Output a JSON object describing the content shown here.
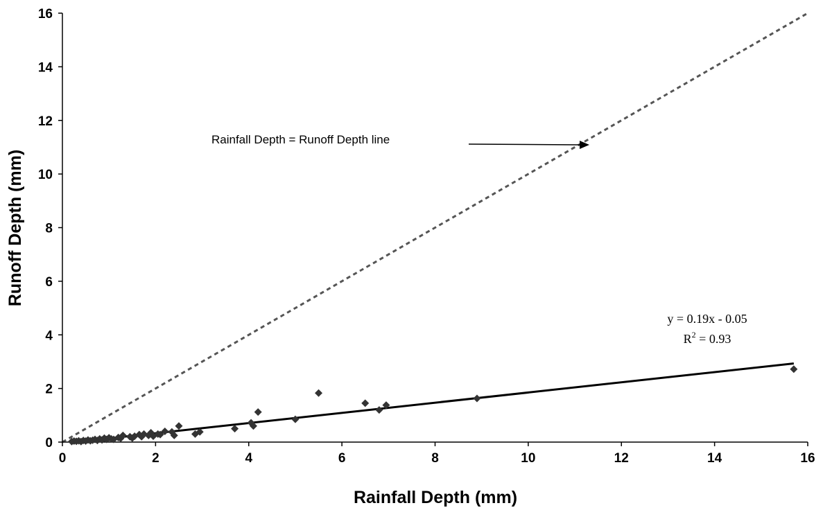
{
  "chart_data": {
    "type": "scatter",
    "title": "",
    "xlabel": "Rainfall Depth (mm)",
    "ylabel": "Runoff Depth (mm)",
    "xlim": [
      0,
      16
    ],
    "ylim": [
      0,
      16
    ],
    "xticks": [
      "0",
      "2",
      "4",
      "6",
      "8",
      "10",
      "12",
      "14",
      "16"
    ],
    "yticks": [
      "0",
      "2",
      "4",
      "6",
      "8",
      "10",
      "12",
      "14",
      "16"
    ],
    "grid": false,
    "colors": {
      "points": "#333333",
      "trendline": "#000000",
      "reference_line": "#555555"
    },
    "points": [
      {
        "x": 0.2,
        "y": 0.02
      },
      {
        "x": 0.25,
        "y": 0.04
      },
      {
        "x": 0.3,
        "y": 0.03
      },
      {
        "x": 0.35,
        "y": 0.05
      },
      {
        "x": 0.4,
        "y": 0.02
      },
      {
        "x": 0.45,
        "y": 0.06
      },
      {
        "x": 0.5,
        "y": 0.04
      },
      {
        "x": 0.55,
        "y": 0.08
      },
      {
        "x": 0.6,
        "y": 0.05
      },
      {
        "x": 0.65,
        "y": 0.07
      },
      {
        "x": 0.7,
        "y": 0.1
      },
      {
        "x": 0.75,
        "y": 0.06
      },
      {
        "x": 0.8,
        "y": 0.12
      },
      {
        "x": 0.85,
        "y": 0.08
      },
      {
        "x": 0.9,
        "y": 0.15
      },
      {
        "x": 0.95,
        "y": 0.1
      },
      {
        "x": 1.0,
        "y": 0.16
      },
      {
        "x": 1.05,
        "y": 0.12
      },
      {
        "x": 1.1,
        "y": 0.1
      },
      {
        "x": 1.2,
        "y": 0.17
      },
      {
        "x": 1.25,
        "y": 0.14
      },
      {
        "x": 1.3,
        "y": 0.25
      },
      {
        "x": 1.45,
        "y": 0.2
      },
      {
        "x": 1.5,
        "y": 0.15
      },
      {
        "x": 1.55,
        "y": 0.22
      },
      {
        "x": 1.65,
        "y": 0.28
      },
      {
        "x": 1.7,
        "y": 0.2
      },
      {
        "x": 1.75,
        "y": 0.3
      },
      {
        "x": 1.85,
        "y": 0.25
      },
      {
        "x": 1.9,
        "y": 0.35
      },
      {
        "x": 1.95,
        "y": 0.22
      },
      {
        "x": 2.05,
        "y": 0.3
      },
      {
        "x": 2.1,
        "y": 0.28
      },
      {
        "x": 2.2,
        "y": 0.4
      },
      {
        "x": 2.35,
        "y": 0.38
      },
      {
        "x": 2.4,
        "y": 0.25
      },
      {
        "x": 2.5,
        "y": 0.6
      },
      {
        "x": 2.85,
        "y": 0.3
      },
      {
        "x": 2.95,
        "y": 0.38
      },
      {
        "x": 3.7,
        "y": 0.5
      },
      {
        "x": 4.05,
        "y": 0.72
      },
      {
        "x": 4.1,
        "y": 0.6
      },
      {
        "x": 4.2,
        "y": 1.12
      },
      {
        "x": 5.0,
        "y": 0.85
      },
      {
        "x": 5.5,
        "y": 1.83
      },
      {
        "x": 6.5,
        "y": 1.45
      },
      {
        "x": 6.8,
        "y": 1.2
      },
      {
        "x": 6.95,
        "y": 1.38
      },
      {
        "x": 8.9,
        "y": 1.63
      },
      {
        "x": 15.7,
        "y": 2.72
      }
    ],
    "trendline": {
      "slope": 0.19,
      "intercept": -0.05,
      "x_range": [
        0.2,
        15.7
      ]
    },
    "reference_line": {
      "x_range": [
        0,
        16
      ]
    },
    "annotations": {
      "reference_label": "Rainfall Depth = Runoff Depth line",
      "equation": "y = 0.19x - 0.05",
      "r2_prefix": "R",
      "r2_sup": "2",
      "r2_value": " = 0.93"
    }
  }
}
